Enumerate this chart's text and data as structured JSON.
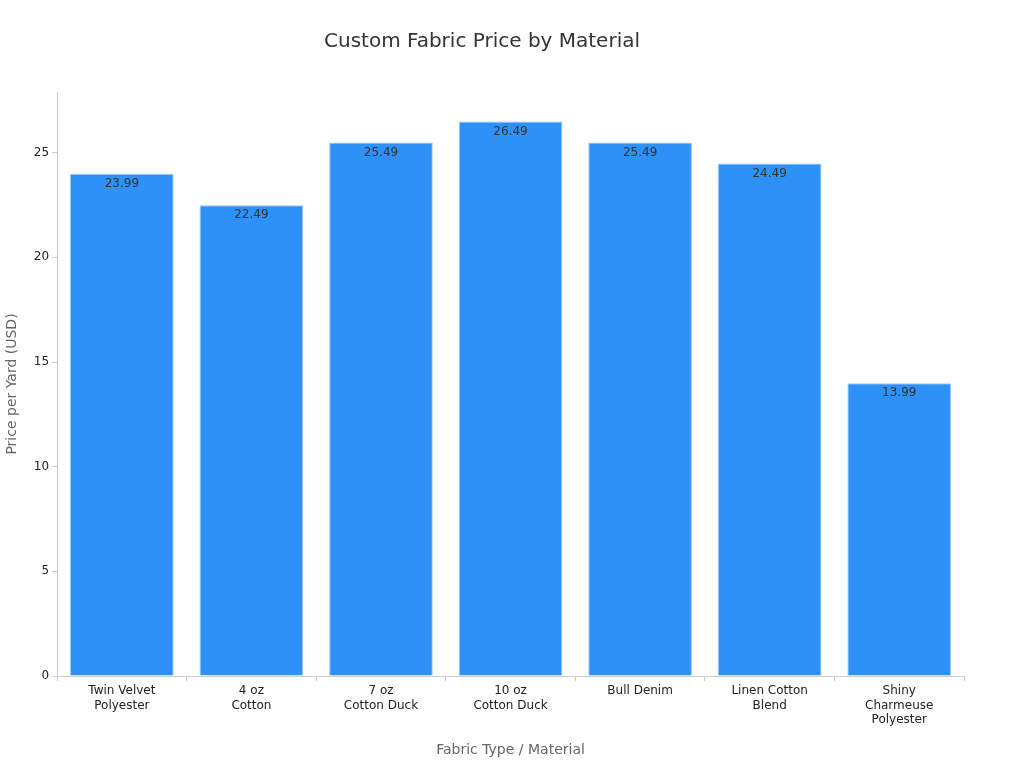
{
  "chart_data": {
    "type": "bar",
    "title": "Custom Fabric Price by Material",
    "xlabel": "Fabric Type / Material",
    "ylabel": "Price per Yard (USD)",
    "categories": [
      "Twin Velvet\nPolyester",
      "4 oz\nCotton",
      "7 oz\nCotton Duck",
      "10 oz\nCotton Duck",
      "Bull Denim",
      "Linen Cotton\nBlend",
      "Shiny\nCharmeuse\nPolyester"
    ],
    "values": [
      23.99,
      22.49,
      25.49,
      26.49,
      25.49,
      24.49,
      13.99
    ],
    "color": "#2e91f7",
    "ylim": [
      0,
      27.9
    ],
    "yticks": [
      0,
      5,
      10,
      15,
      20,
      25
    ],
    "grid": false,
    "legend": false,
    "data_labels": true
  }
}
